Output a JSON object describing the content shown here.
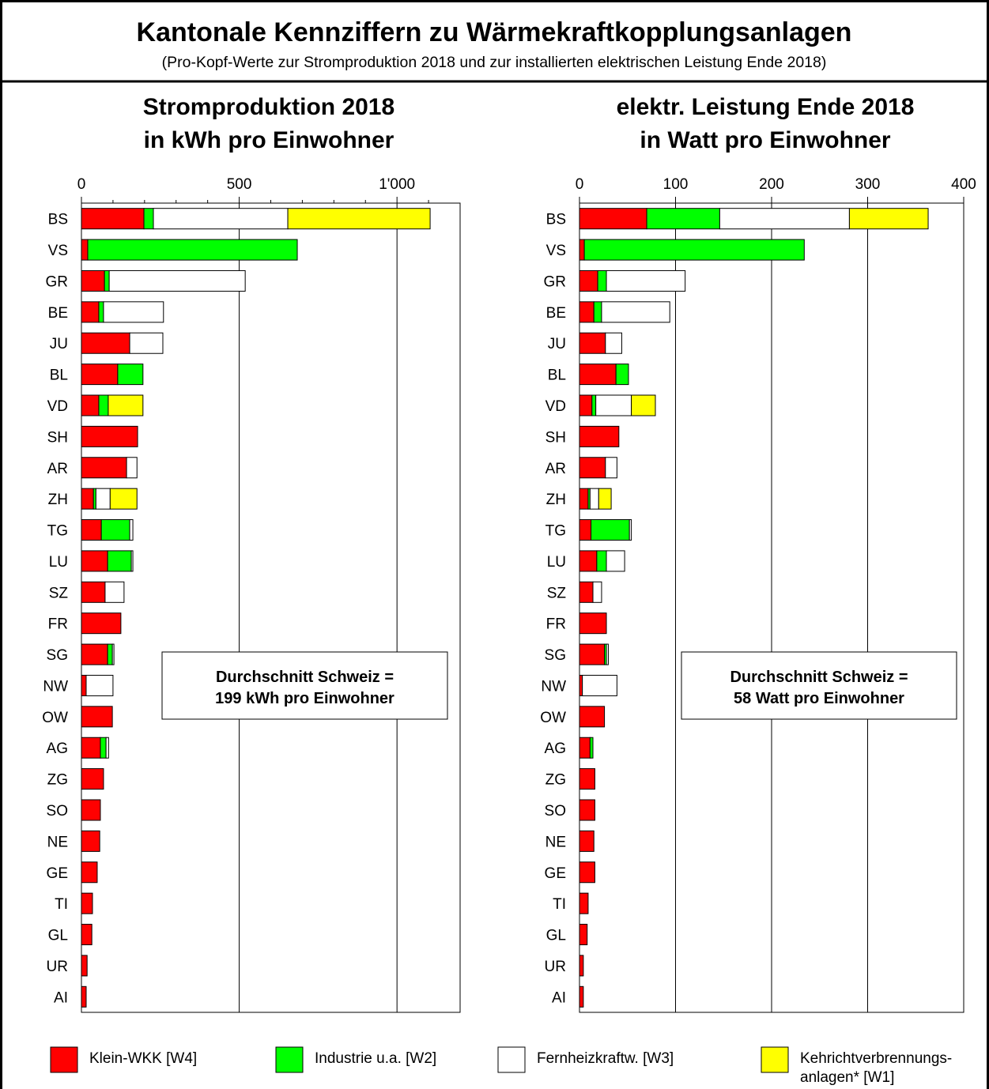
{
  "title": "Kantonale Kennziffern zu Wärmekraftkopplungsanlagen",
  "subtitle": "(Pro-Kopf-Werte zur Stromproduktion 2018 und zur installierten elektrischen Leistung Ende 2018)",
  "chart_data": [
    {
      "type": "bar",
      "orientation": "horizontal",
      "stacked": true,
      "title": [
        "Stromproduktion 2018",
        "in kWh pro Einwohner"
      ],
      "annotation": [
        "Durchschnitt Schweiz =",
        "199 kWh pro Einwohner"
      ],
      "categories": [
        "BS",
        "VS",
        "GR",
        "BE",
        "JU",
        "BL",
        "VD",
        "SH",
        "AR",
        "ZH",
        "TG",
        "LU",
        "SZ",
        "FR",
        "SG",
        "NW",
        "OW",
        "AG",
        "ZG",
        "SO",
        "NE",
        "GE",
        "TI",
        "GL",
        "UR",
        "AI"
      ],
      "xlim": [
        0,
        1200
      ],
      "xticks": [
        0,
        500,
        {
          "value": 1000,
          "label": "1'000"
        }
      ],
      "xminorticks": [
        100,
        200,
        300,
        400,
        600,
        700,
        800,
        900,
        1100
      ],
      "grid": true,
      "series": [
        {
          "name": "Klein-WKK [W4]",
          "color": "#ff0000",
          "values": [
            198,
            20,
            73,
            55,
            153,
            115,
            55,
            178,
            143,
            38,
            63,
            83,
            75,
            125,
            83,
            15,
            98,
            60,
            70,
            60,
            58,
            50,
            35,
            33,
            18,
            15
          ]
        },
        {
          "name": "Industrie u.a. [W2]",
          "color": "#00ff00",
          "values": [
            30,
            664,
            15,
            15,
            0,
            80,
            30,
            0,
            0,
            8,
            90,
            75,
            0,
            0,
            15,
            0,
            0,
            18,
            0,
            0,
            0,
            0,
            0,
            0,
            0,
            0
          ]
        },
        {
          "name": "Fernheizkraftw. [W3]",
          "color": "#ffffff",
          "values": [
            426,
            0,
            431,
            190,
            105,
            0,
            0,
            0,
            33,
            45,
            10,
            5,
            60,
            0,
            5,
            85,
            0,
            8,
            0,
            0,
            0,
            0,
            0,
            0,
            0,
            0
          ]
        },
        {
          "name": "Kehrichtverbrennungs-anlagen* [W1]",
          "color": "#ffff00",
          "values": [
            451,
            0,
            0,
            0,
            0,
            0,
            110,
            0,
            0,
            85,
            0,
            0,
            0,
            0,
            0,
            0,
            0,
            0,
            0,
            0,
            0,
            0,
            0,
            0,
            0,
            0
          ]
        }
      ]
    },
    {
      "type": "bar",
      "orientation": "horizontal",
      "stacked": true,
      "title": [
        "elektr. Leistung Ende 2018",
        "in Watt pro Einwohner"
      ],
      "annotation": [
        "Durchschnitt Schweiz =",
        "58 Watt pro Einwohner"
      ],
      "categories": [
        "BS",
        "VS",
        "GR",
        "BE",
        "JU",
        "BL",
        "VD",
        "SH",
        "AR",
        "ZH",
        "TG",
        "LU",
        "SZ",
        "FR",
        "SG",
        "NW",
        "OW",
        "AG",
        "ZG",
        "SO",
        "NE",
        "GE",
        "TI",
        "GL",
        "UR",
        "AI"
      ],
      "xlim": [
        0,
        400
      ],
      "xticks": [
        0,
        100,
        200,
        300,
        400
      ],
      "grid": true,
      "series": [
        {
          "color": "#ff0000",
          "values": [
            70,
            5,
            19,
            15,
            27,
            38,
            13,
            41,
            27,
            9,
            12,
            18,
            14,
            28,
            26,
            3,
            26,
            11,
            16,
            16,
            15,
            16,
            9,
            8,
            4,
            4
          ]
        },
        {
          "color": "#00ff00",
          "values": [
            76,
            229,
            9,
            8,
            0,
            13,
            4,
            0,
            0,
            2,
            40,
            10,
            0,
            0,
            2,
            0,
            0,
            3,
            0,
            0,
            0,
            0,
            0,
            0,
            0,
            0
          ]
        },
        {
          "color": "#ffffff",
          "values": [
            135,
            0,
            82,
            71,
            17,
            0,
            37,
            0,
            12,
            9,
            2,
            19,
            9,
            0,
            2,
            36,
            0,
            0,
            0,
            0,
            0,
            0,
            0,
            0,
            0,
            0
          ]
        },
        {
          "color": "#ffff00",
          "values": [
            82,
            0,
            0,
            0,
            0,
            0,
            25,
            0,
            0,
            13,
            0,
            0,
            0,
            0,
            0,
            0,
            0,
            0,
            0,
            0,
            0,
            0,
            0,
            0,
            0,
            0
          ]
        }
      ]
    }
  ]
}
